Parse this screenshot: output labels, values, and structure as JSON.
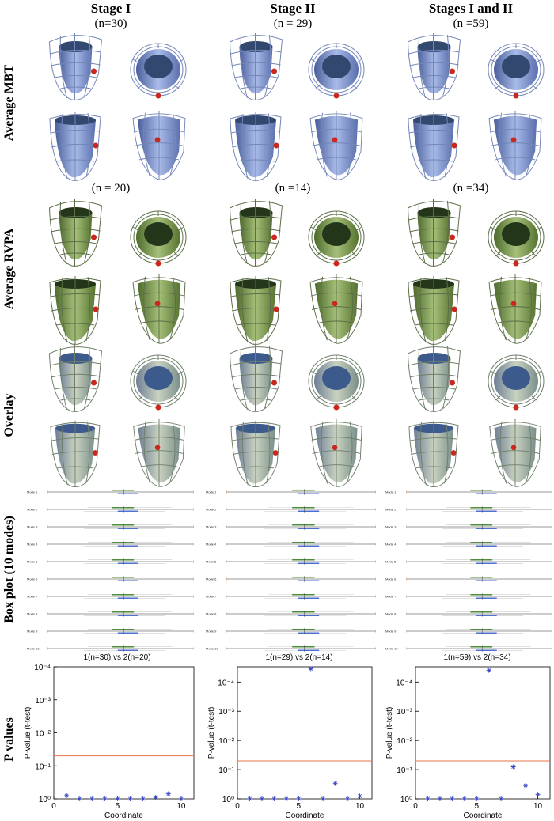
{
  "columns": [
    {
      "title": "Stage I",
      "n_mbt": "(n=30)",
      "n_rvpa": "(n = 20)"
    },
    {
      "title": "Stage II",
      "n_mbt": "(n = 29)",
      "n_rvpa": "(n =14)"
    },
    {
      "title": "Stages I and II",
      "n_mbt": "(n =59)",
      "n_rvpa": "(n =34)"
    }
  ],
  "row_labels": [
    "Average MBT",
    "Average RVPA",
    "Overlay",
    "Box plot (10 modes)",
    "P values"
  ],
  "box_plots": [
    {
      "title": "1(n=30) vs 2(n=20)",
      "modes": [
        "Mode 1",
        "Mode 2",
        "Mode 3",
        "Mode 4",
        "Mode 5",
        "Mode 6",
        "Mode 7",
        "Mode 8",
        "Mode 9",
        "Mode 10"
      ]
    },
    {
      "title": "1(n=29) vs 2(n=14)",
      "modes": [
        "Mode 1",
        "Mode 2",
        "Mode 3",
        "Mode 4",
        "Mode 5",
        "Mode 6",
        "Mode 7",
        "Mode 8",
        "Mode 9",
        "Mode 10"
      ]
    },
    {
      "title": "1(n=59) vs 2(n=34)",
      "modes": [
        "Mode 1",
        "Mode 2",
        "Mode 3",
        "Mode 4",
        "Mode 5",
        "Mode 6",
        "Mode 7",
        "Mode 8",
        "Mode 9",
        "Mode 10"
      ]
    }
  ],
  "chart_data": [
    {
      "type": "scatter",
      "x_label": "Coordinate",
      "y_label": "P-value (t-test)",
      "log_y": true,
      "color": "#3a48c8",
      "x": [
        1,
        2,
        3,
        4,
        5,
        6,
        7,
        8,
        9,
        10
      ],
      "values": [
        0.8,
        1,
        1,
        1,
        1,
        1,
        1,
        0.9,
        0.7,
        1
      ],
      "threshold": 0.05,
      "threshold_color": "#e8734a",
      "xlim": [
        0,
        11
      ],
      "xticks": [
        0,
        5,
        10
      ],
      "ylim": [
        1,
        0.0001
      ],
      "yticks": [
        {
          "value": 1,
          "label": "10⁰"
        },
        {
          "value": 0.1,
          "label": "10⁻¹"
        },
        {
          "value": 0.01,
          "label": "10⁻²"
        },
        {
          "value": 0.001,
          "label": "10⁻³"
        },
        {
          "value": 0.0001,
          "label": "10⁻⁴"
        }
      ]
    },
    {
      "type": "scatter",
      "x_label": "Coordinate",
      "y_label": "P-value (t-test)",
      "log_y": true,
      "color": "#3a48c8",
      "x": [
        1,
        2,
        3,
        4,
        5,
        6,
        7,
        8,
        9,
        10
      ],
      "values": [
        1,
        1,
        1,
        1,
        1,
        3.5e-05,
        1,
        0.3,
        1,
        0.8
      ],
      "threshold": 0.05,
      "threshold_color": "#e8734a",
      "xlim": [
        0,
        11
      ],
      "xticks": [
        0,
        5,
        10
      ],
      "ylim": [
        1,
        3e-05
      ],
      "yticks": [
        {
          "value": 1,
          "label": "10⁰"
        },
        {
          "value": 0.1,
          "label": "10⁻¹"
        },
        {
          "value": 0.01,
          "label": "10⁻²"
        },
        {
          "value": 0.001,
          "label": "10⁻³"
        },
        {
          "value": 0.0001,
          "label": "10⁻⁴"
        }
      ]
    },
    {
      "type": "scatter",
      "x_label": "Coordinate",
      "y_label": "P-value (t-test)",
      "log_y": true,
      "color": "#3a48c8",
      "x": [
        1,
        2,
        3,
        4,
        5,
        6,
        7,
        8,
        9,
        10
      ],
      "values": [
        1,
        1,
        1,
        1,
        1,
        4e-05,
        1,
        0.08,
        0.35,
        0.7
      ],
      "threshold": 0.05,
      "threshold_color": "#e8734a",
      "xlim": [
        0,
        11
      ],
      "xticks": [
        0,
        5,
        10
      ],
      "ylim": [
        1,
        3e-05
      ],
      "yticks": [
        {
          "value": 1,
          "label": "10⁰"
        },
        {
          "value": 0.1,
          "label": "10⁻¹"
        },
        {
          "value": 0.01,
          "label": "10⁻²"
        },
        {
          "value": 0.001,
          "label": "10⁻³"
        },
        {
          "value": 0.0001,
          "label": "10⁻⁴"
        }
      ]
    }
  ]
}
